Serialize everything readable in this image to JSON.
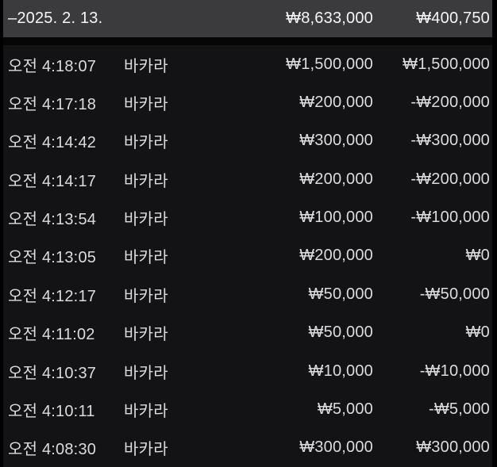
{
  "colors": {
    "page_bg": "#000000",
    "header_bg": "#3b3b3d",
    "header_text": "#f6f6f6",
    "row_bg": "#131315",
    "row_text": "#dcdcdd"
  },
  "header": {
    "date_label": "–2025. 2. 13.",
    "total_bet": "₩8,633,000",
    "total_result": "₩400,750"
  },
  "rows": [
    {
      "time": "오전 4:18:07",
      "game": "바카라",
      "bet": "₩1,500,000",
      "result": "₩1,500,000"
    },
    {
      "time": "오전 4:17:18",
      "game": "바카라",
      "bet": "₩200,000",
      "result": "-₩200,000"
    },
    {
      "time": "오전 4:14:42",
      "game": "바카라",
      "bet": "₩300,000",
      "result": "-₩300,000"
    },
    {
      "time": "오전 4:14:17",
      "game": "바카라",
      "bet": "₩200,000",
      "result": "-₩200,000"
    },
    {
      "time": "오전 4:13:54",
      "game": "바카라",
      "bet": "₩100,000",
      "result": "-₩100,000"
    },
    {
      "time": "오전 4:13:05",
      "game": "바카라",
      "bet": "₩200,000",
      "result": "₩0"
    },
    {
      "time": "오전 4:12:17",
      "game": "바카라",
      "bet": "₩50,000",
      "result": "-₩50,000"
    },
    {
      "time": "오전 4:11:02",
      "game": "바카라",
      "bet": "₩50,000",
      "result": "₩0"
    },
    {
      "time": "오전 4:10:37",
      "game": "바카라",
      "bet": "₩10,000",
      "result": "-₩10,000"
    },
    {
      "time": "오전 4:10:11",
      "game": "바카라",
      "bet": "₩5,000",
      "result": "-₩5,000"
    },
    {
      "time": "오전 4:08:30",
      "game": "바카라",
      "bet": "₩300,000",
      "result": "₩300,000"
    }
  ]
}
